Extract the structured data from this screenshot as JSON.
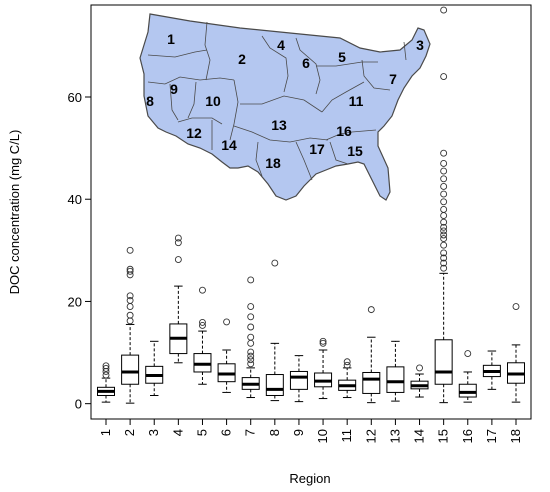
{
  "chart_data": {
    "type": "box",
    "xlabel": "Region",
    "ylabel": "DOC concentration (mg C/L)",
    "ylim": [
      -3,
      78
    ],
    "yticks": [
      0,
      20,
      40,
      60
    ],
    "categories": [
      "1",
      "2",
      "3",
      "4",
      "5",
      "6",
      "7",
      "8",
      "9",
      "10",
      "11",
      "12",
      "13",
      "14",
      "15",
      "16",
      "17",
      "18"
    ],
    "boxes": [
      {
        "region": "1",
        "whisker_low": 0.3,
        "q1": 1.6,
        "median": 2.4,
        "q3": 3.2,
        "whisker_high": 5.0,
        "outliers": [
          5.6,
          6.3,
          6.9,
          7.4
        ]
      },
      {
        "region": "2",
        "whisker_low": 0.1,
        "q1": 3.8,
        "median": 6.2,
        "q3": 9.5,
        "whisker_high": 15.5,
        "outliers": [
          16.2,
          17.3,
          19.0,
          20.2,
          21.1,
          25.2,
          25.9,
          26.3,
          30.0
        ]
      },
      {
        "region": "3",
        "whisker_low": 1.6,
        "q1": 4.0,
        "median": 5.5,
        "q3": 7.3,
        "whisker_high": 12.2,
        "outliers": []
      },
      {
        "region": "4",
        "whisker_low": 8.0,
        "q1": 9.8,
        "median": 12.8,
        "q3": 15.6,
        "whisker_high": 23.0,
        "outliers": [
          28.2,
          31.5,
          32.4
        ]
      },
      {
        "region": "5",
        "whisker_low": 3.8,
        "q1": 6.2,
        "median": 7.7,
        "q3": 9.8,
        "whisker_high": 14.2,
        "outliers": [
          15.3,
          15.9,
          22.2
        ]
      },
      {
        "region": "6",
        "whisker_low": 2.2,
        "q1": 4.3,
        "median": 5.8,
        "q3": 7.8,
        "whisker_high": 10.5,
        "outliers": [
          16.0
        ]
      },
      {
        "region": "7",
        "whisker_low": 1.2,
        "q1": 2.8,
        "median": 3.8,
        "q3": 5.1,
        "whisker_high": 7.0,
        "outliers": [
          7.8,
          8.6,
          9.3,
          10.1,
          11.8,
          13.0,
          15.0,
          17.0,
          19.0,
          24.2
        ]
      },
      {
        "region": "8",
        "whisker_low": 0.6,
        "q1": 1.6,
        "median": 2.8,
        "q3": 5.7,
        "whisker_high": 11.8,
        "outliers": [
          27.5
        ]
      },
      {
        "region": "9",
        "whisker_low": 0.4,
        "q1": 2.8,
        "median": 5.2,
        "q3": 6.3,
        "whisker_high": 9.4,
        "outliers": []
      },
      {
        "region": "10",
        "whisker_low": 1.0,
        "q1": 3.3,
        "median": 4.4,
        "q3": 6.0,
        "whisker_high": 10.5,
        "outliers": [
          11.8,
          12.2
        ]
      },
      {
        "region": "11",
        "whisker_low": 1.2,
        "q1": 2.6,
        "median": 3.5,
        "q3": 4.6,
        "whisker_high": 7.0,
        "outliers": [
          7.5,
          8.2
        ]
      },
      {
        "region": "12",
        "whisker_low": 0.2,
        "q1": 2.0,
        "median": 4.8,
        "q3": 6.1,
        "whisker_high": 13.0,
        "outliers": [
          18.4
        ]
      },
      {
        "region": "13",
        "whisker_low": 0.5,
        "q1": 2.2,
        "median": 4.3,
        "q3": 7.2,
        "whisker_high": 12.2,
        "outliers": []
      },
      {
        "region": "14",
        "whisker_low": 1.3,
        "q1": 2.9,
        "median": 3.5,
        "q3": 4.4,
        "whisker_high": 5.8,
        "outliers": [
          7.0
        ]
      },
      {
        "region": "15",
        "whisker_low": 0.2,
        "q1": 3.8,
        "median": 6.2,
        "q3": 12.5,
        "whisker_high": 25.5,
        "outliers": [
          26.5,
          27.5,
          28.5,
          29.5,
          31.0,
          32.3,
          33.0,
          33.8,
          34.5,
          35.5,
          36.8,
          38.0,
          39.5,
          41.0,
          42.5,
          44.0,
          45.5,
          47.0,
          49.0,
          64.0,
          77.0
        ]
      },
      {
        "region": "16",
        "whisker_low": 0.3,
        "q1": 1.3,
        "median": 2.2,
        "q3": 3.8,
        "whisker_high": 6.2,
        "outliers": [
          9.8
        ]
      },
      {
        "region": "17",
        "whisker_low": 2.8,
        "q1": 5.3,
        "median": 6.3,
        "q3": 7.5,
        "whisker_high": 10.3,
        "outliers": []
      },
      {
        "region": "18",
        "whisker_low": 0.3,
        "q1": 4.0,
        "median": 5.8,
        "q3": 8.0,
        "whisker_high": 11.5,
        "outliers": [
          19.0
        ]
      }
    ]
  },
  "inset_map": {
    "fill_color": "#b4c7f0",
    "stroke_color": "#4a4a4a",
    "region_labels": [
      {
        "text": "1"
      },
      {
        "text": "2"
      },
      {
        "text": "3"
      },
      {
        "text": "4"
      },
      {
        "text": "5"
      },
      {
        "text": "6"
      },
      {
        "text": "7"
      },
      {
        "text": "8"
      },
      {
        "text": "9"
      },
      {
        "text": "10"
      },
      {
        "text": "11"
      },
      {
        "text": "12"
      },
      {
        "text": "13"
      },
      {
        "text": "14"
      },
      {
        "text": "15"
      },
      {
        "text": "16"
      },
      {
        "text": "17"
      },
      {
        "text": "18"
      }
    ]
  }
}
